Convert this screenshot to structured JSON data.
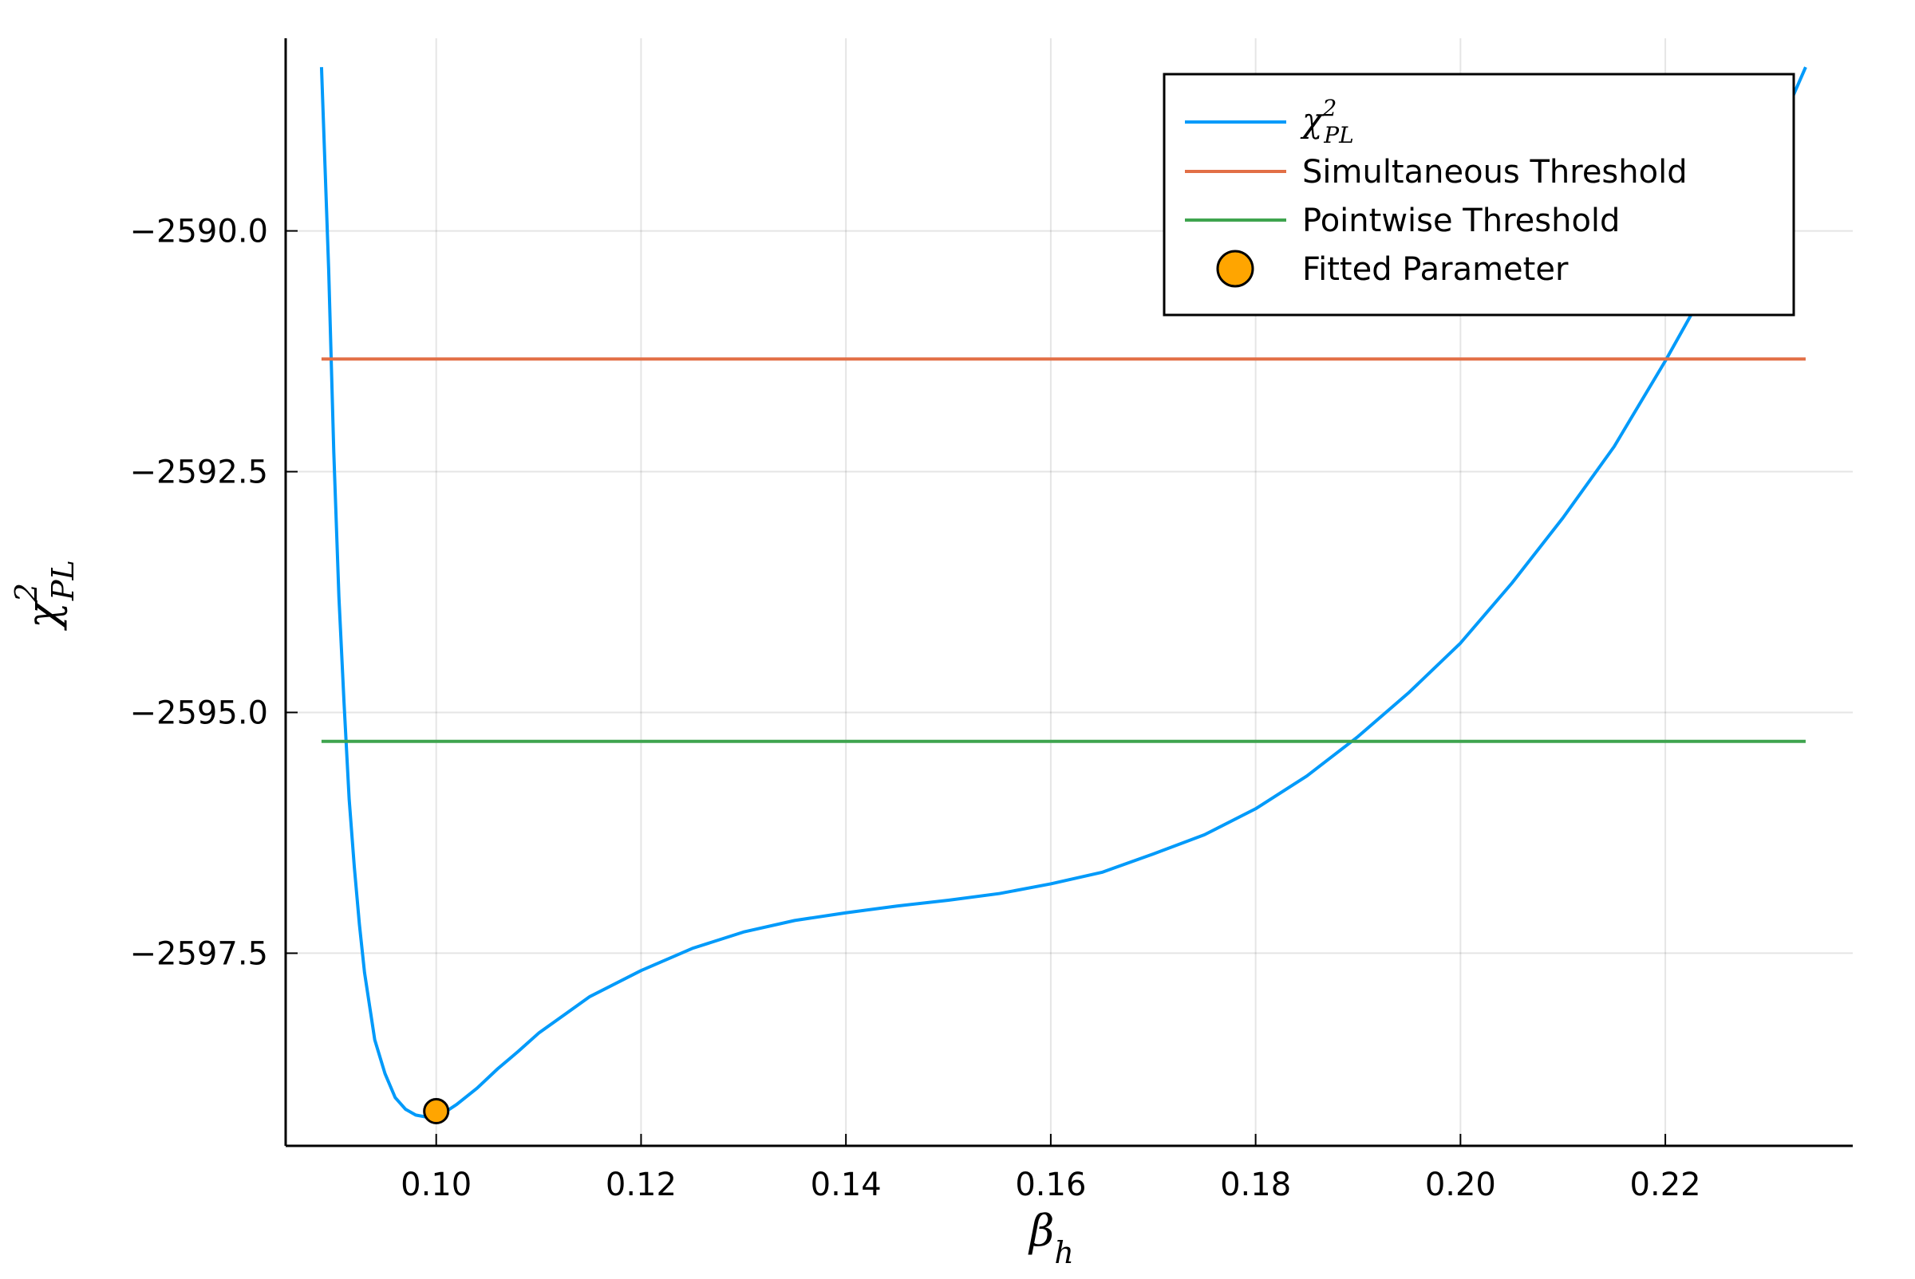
{
  "chart_data": {
    "type": "line",
    "xlabel": {
      "base": "β",
      "sub": "h"
    },
    "ylabel": {
      "base": "χ",
      "sup": "2",
      "sub": "PL"
    },
    "xlim": [
      0.0853,
      0.2383
    ],
    "ylim": [
      -2599.5,
      -2588.0
    ],
    "xticks": [
      0.1,
      0.12,
      0.14,
      0.16,
      0.18,
      0.2,
      0.22
    ],
    "xtick_labels": [
      "0.10",
      "0.12",
      "0.14",
      "0.16",
      "0.18",
      "0.20",
      "0.22"
    ],
    "yticks": [
      -2590.0,
      -2592.5,
      -2595.0,
      -2597.5
    ],
    "ytick_labels": [
      "−2590.0",
      "−2592.5",
      "−2595.0",
      "−2597.5"
    ],
    "grid": true,
    "legend_position": "top-right",
    "series": [
      {
        "name": "χ²_PL",
        "kind": "line",
        "color": "#009AFA",
        "x": [
          0.0888,
          0.0895,
          0.09,
          0.0905,
          0.091,
          0.0915,
          0.092,
          0.0925,
          0.093,
          0.0935,
          0.094,
          0.095,
          0.096,
          0.097,
          0.098,
          0.099,
          0.1,
          0.101,
          0.102,
          0.104,
          0.106,
          0.108,
          0.11,
          0.115,
          0.12,
          0.125,
          0.13,
          0.135,
          0.14,
          0.145,
          0.15,
          0.155,
          0.16,
          0.165,
          0.17,
          0.175,
          0.18,
          0.185,
          0.19,
          0.195,
          0.2,
          0.205,
          0.21,
          0.215,
          0.22,
          0.225,
          0.23,
          0.2337
        ],
        "y": [
          -2588.3,
          -2590.4,
          -2592.3,
          -2593.8,
          -2594.9,
          -2595.9,
          -2596.6,
          -2597.2,
          -2597.7,
          -2598.05,
          -2598.4,
          -2598.75,
          -2599.0,
          -2599.12,
          -2599.18,
          -2599.2,
          -2599.19,
          -2599.14,
          -2599.07,
          -2598.9,
          -2598.7,
          -2598.52,
          -2598.33,
          -2597.95,
          -2597.68,
          -2597.45,
          -2597.28,
          -2597.16,
          -2597.08,
          -2597.01,
          -2596.95,
          -2596.88,
          -2596.78,
          -2596.66,
          -2596.47,
          -2596.27,
          -2596.0,
          -2595.66,
          -2595.25,
          -2594.79,
          -2594.28,
          -2593.66,
          -2592.98,
          -2592.24,
          -2591.35,
          -2590.4,
          -2589.2,
          -2588.3
        ]
      },
      {
        "name": "Simultaneous Threshold",
        "kind": "hline",
        "color": "#E26F46",
        "x": [
          0.0888,
          0.2337
        ],
        "y": -2591.33
      },
      {
        "name": "Pointwise Threshold",
        "kind": "hline",
        "color": "#3EA44E",
        "x": [
          0.0888,
          0.2337
        ],
        "y": -2595.3
      },
      {
        "name": "Fitted Parameter",
        "kind": "scatter",
        "color": "#FFA500",
        "x": [
          0.1
        ],
        "y": [
          -2599.14
        ]
      }
    ]
  }
}
